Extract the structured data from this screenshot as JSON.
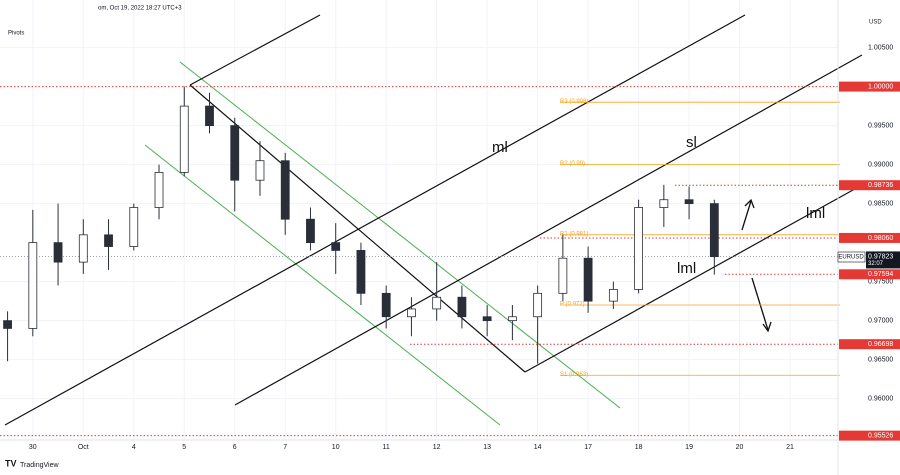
{
  "header": "om, Oct 19, 2022 18:27 UTC+3",
  "indicator": "Pivots",
  "currency": "USD",
  "symbol": "EURUSD",
  "countdown": "32:07",
  "watermark": "TradingView",
  "annotations": [
    "ml",
    "sl",
    "lml",
    "lml"
  ],
  "chart_data": {
    "type": "candlestick",
    "color": "#2a2e39",
    "x": [
      -0.5,
      0,
      0.5,
      1,
      1.5,
      2,
      2.5,
      3,
      3.5,
      4,
      4.5,
      5,
      5.5,
      6,
      6.5,
      7,
      7.5,
      8,
      8.5,
      9,
      9.5,
      10,
      10.5,
      11,
      11.5,
      12,
      12.5,
      13,
      13.5
    ],
    "open": [
      0.97,
      0.969,
      0.98,
      0.9775,
      0.981,
      0.9795,
      0.9845,
      0.989,
      0.9975,
      0.995,
      0.988,
      0.9905,
      0.983,
      0.98,
      0.979,
      0.9735,
      0.9705,
      0.9715,
      0.973,
      0.9705,
      0.97,
      0.9705,
      0.9735,
      0.978,
      0.9725,
      0.974,
      0.9845,
      0.9855,
      0.985
    ],
    "high": [
      0.9712,
      0.9842,
      0.985,
      0.983,
      0.983,
      0.985,
      0.99,
      1.0,
      0.9992,
      0.996,
      0.993,
      0.9915,
      0.9845,
      0.9825,
      0.98,
      0.9745,
      0.973,
      0.9775,
      0.9745,
      0.972,
      0.972,
      0.9745,
      0.981,
      0.9795,
      0.975,
      0.9855,
      0.9874,
      0.9872,
      0.9855
    ],
    "low": [
      0.9648,
      0.968,
      0.9745,
      0.976,
      0.9765,
      0.979,
      0.983,
      0.9885,
      0.994,
      0.984,
      0.986,
      0.981,
      0.979,
      0.976,
      0.972,
      0.969,
      0.968,
      0.97,
      0.969,
      0.968,
      0.9675,
      0.9645,
      0.9725,
      0.971,
      0.9715,
      0.9735,
      0.982,
      0.983,
      0.9759
    ],
    "close": [
      0.969,
      0.98,
      0.9775,
      0.981,
      0.9795,
      0.9845,
      0.989,
      0.9975,
      0.995,
      0.988,
      0.9905,
      0.983,
      0.98,
      0.979,
      0.9735,
      0.9705,
      0.9715,
      0.973,
      0.9705,
      0.97,
      0.9705,
      0.9735,
      0.978,
      0.9725,
      0.974,
      0.9845,
      0.9855,
      0.985,
      0.9782
    ],
    "xlim": [
      -0.65,
      15.95
    ],
    "ylim": [
      0.9547,
      1.0111
    ],
    "xticks": [
      {
        "value": 0,
        "label": "30"
      },
      {
        "value": 1,
        "label": "Oct"
      },
      {
        "value": 2,
        "label": "4"
      },
      {
        "value": 3,
        "label": "5"
      },
      {
        "value": 4,
        "label": "6"
      },
      {
        "value": 5,
        "label": "7"
      },
      {
        "value": 6,
        "label": "10"
      },
      {
        "value": 7,
        "label": "11"
      },
      {
        "value": 8,
        "label": "12"
      },
      {
        "value": 9,
        "label": "13"
      },
      {
        "value": 10,
        "label": "14"
      },
      {
        "value": 11,
        "label": "17"
      },
      {
        "value": 12,
        "label": "18"
      },
      {
        "value": 13,
        "label": "19"
      },
      {
        "value": 14,
        "label": "20"
      },
      {
        "value": 15,
        "label": "21"
      }
    ],
    "yticks": [
      {
        "value": 1.005,
        "label": "1.00500"
      },
      {
        "value": 0.995,
        "label": "0.99500"
      },
      {
        "value": 0.99,
        "label": "0.99000"
      },
      {
        "value": 0.985,
        "label": "0.98500"
      },
      {
        "value": 0.975,
        "label": "0.97500"
      },
      {
        "value": 0.97,
        "label": "0.97000"
      },
      {
        "value": 0.965,
        "label": "0.96500"
      },
      {
        "value": 0.96,
        "label": "0.96000"
      }
    ],
    "grid": true,
    "levels": [
      {
        "value": 1.0,
        "label": "1.00000"
      },
      {
        "value": 0.98736,
        "label": "0.98736"
      },
      {
        "value": 0.9806,
        "label": "0.98060"
      },
      {
        "value": 0.97594,
        "label": "0.97594"
      },
      {
        "value": 0.96698,
        "label": "0.96698"
      },
      {
        "value": 0.95526,
        "label": "0.95526"
      }
    ],
    "level_color": "#e53935",
    "current": {
      "value": 0.97823,
      "label": "0.97823"
    },
    "pivots": [
      {
        "name": "R3 (0.998)",
        "value": 0.998
      },
      {
        "name": "R2 (0.99)",
        "value": 0.99
      },
      {
        "name": "R1 (0.981)",
        "value": 0.981
      },
      {
        "name": "P (0.972)",
        "value": 0.972
      },
      {
        "name": "S1 (0.963)",
        "value": 0.963
      }
    ],
    "pivot_color": "#f7a21b"
  }
}
